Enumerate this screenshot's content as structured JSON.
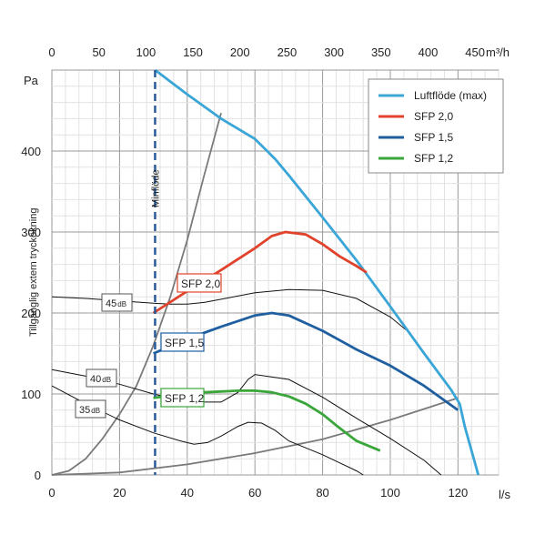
{
  "chart_data": {
    "type": "line",
    "title": "",
    "xlabel": "l/s",
    "x2label": "m³/h",
    "ylabel": "Tillgänglig extern tryckökning",
    "yunit": "Pa",
    "xlim": [
      0,
      132
    ],
    "x2lim": [
      0,
      475
    ],
    "ylim": [
      0,
      500
    ],
    "x_ticks": [
      0,
      20,
      40,
      60,
      80,
      100,
      120
    ],
    "x2_ticks": [
      0,
      50,
      100,
      150,
      200,
      250,
      300,
      350,
      400,
      450
    ],
    "y_ticks": [
      0,
      100,
      200,
      300,
      400
    ],
    "grid": true,
    "legend": "top-right",
    "colors": {
      "luftflode": "#3aa6d8",
      "sfp20": "#e0422b",
      "sfp15": "#1f5fa0",
      "sfp12": "#3aa63a",
      "system": "#7a7a7a",
      "sound": "#111111",
      "minflode": "#2a5a9a"
    },
    "series": [
      {
        "name": "Luftflöde (max)",
        "key": "luftflode",
        "x": [
          30.5,
          40,
          50,
          60,
          66,
          70,
          80,
          90,
          100,
          110,
          118,
          120.5,
          122,
          126
        ],
        "y": [
          500,
          470,
          440,
          415,
          390,
          370,
          318,
          265,
          208,
          150,
          105,
          88,
          60,
          0
        ]
      },
      {
        "name": "SFP 2,0",
        "key": "sfp20",
        "x": [
          30,
          40,
          50,
          60,
          65,
          69,
          75,
          80,
          85,
          90,
          93
        ],
        "y": [
          200,
          227,
          253,
          280,
          295,
          300,
          297,
          285,
          270,
          258,
          250
        ]
      },
      {
        "name": "SFP 1,5",
        "key": "sfp15",
        "x": [
          30,
          40,
          50,
          60,
          65,
          70,
          80,
          90,
          100,
          110,
          120
        ],
        "y": [
          150,
          168,
          183,
          197,
          200,
          197,
          178,
          155,
          135,
          110,
          80
        ]
      },
      {
        "name": "SFP 1,2",
        "key": "sfp12",
        "x": [
          30,
          35,
          40,
          45,
          50,
          55,
          60,
          65,
          70,
          75,
          80,
          85,
          90,
          97
        ],
        "y": [
          95,
          98,
          100,
          102,
          103,
          104,
          104,
          102,
          97,
          88,
          75,
          58,
          42,
          30
        ]
      }
    ],
    "system_curves": [
      {
        "x": [
          0,
          5,
          10,
          15,
          20,
          25,
          30,
          35,
          40,
          45,
          50
        ],
        "y": [
          0,
          5,
          20,
          45,
          75,
          110,
          160,
          220,
          290,
          370,
          447
        ]
      },
      {
        "x": [
          0,
          20,
          40,
          60,
          80,
          100,
          120
        ],
        "y": [
          0,
          3,
          13,
          27,
          44,
          68,
          95
        ]
      }
    ],
    "sound_curves": [
      {
        "x": [
          0,
          10,
          20,
          30,
          35,
          40,
          45,
          50,
          60,
          70,
          80,
          90,
          100,
          105
        ],
        "y": [
          220,
          218,
          215,
          212,
          211,
          211,
          213,
          217,
          225,
          229,
          228,
          218,
          195,
          178
        ]
      },
      {
        "x": [
          0,
          10,
          20,
          30,
          40,
          50,
          55,
          58,
          60,
          70,
          80,
          90,
          100,
          110,
          115
        ],
        "y": [
          130,
          122,
          112,
          100,
          90,
          90,
          102,
          118,
          124,
          118,
          96,
          70,
          45,
          18,
          0
        ]
      },
      {
        "x": [
          0,
          10,
          20,
          30,
          38,
          42,
          46,
          50,
          55,
          58,
          62,
          66,
          70,
          80,
          90,
          92
        ],
        "y": [
          110,
          88,
          68,
          52,
          42,
          38,
          40,
          48,
          60,
          65,
          64,
          55,
          42,
          25,
          5,
          0
        ]
      }
    ],
    "minflode_x": 30.5,
    "annotations": {
      "minflode": "Minflöde",
      "sfp20_box": "SFP 2,0",
      "sfp15_box": "SFP 1,5",
      "sfp12_box": "SFP 1,2",
      "db45_main": "45",
      "db40_main": "40",
      "db35_main": "35",
      "db_unit": "dB"
    }
  }
}
